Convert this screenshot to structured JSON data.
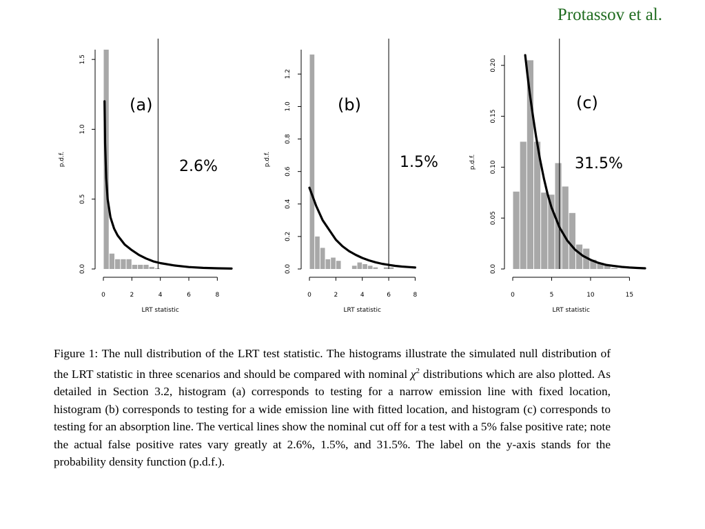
{
  "header": {
    "author": "Protassov et al."
  },
  "caption": {
    "text_before_chi": "Figure 1: The null distribution of the LRT test statistic. The histograms illustrate the simulated null distribution of the LRT statistic in three scenarios and should be compared with nominal ",
    "chi_symbol": "χ",
    "chi_superscript": "2",
    "text_after_chi": " distributions which are also plotted. As detailed in Section 3.2, histogram (a) corresponds to testing for a narrow emission line with fixed location, histogram (b) corresponds to testing for a wide emission line with fitted location, and histogram (c) corresponds to testing for an absorption line. The vertical lines show the nominal cut off for a test with a 5% false positive rate; note the actual false positive rates vary greatly at 2.6%, 1.5%, and 31.5%. The label on the y-axis stands for the probability density function (p.d.f.)."
  },
  "colors": {
    "bar": "#a8a8a8",
    "curve": "#000000",
    "author": "#1f6b1f"
  },
  "chart_data": [
    {
      "type": "bar",
      "panel_label": "(a)",
      "cutoff_label": "2.6%",
      "xlabel": "LRT statistic",
      "ylabel": "p.d.f.",
      "xlim": [
        0,
        9
      ],
      "ylim": [
        0,
        15.7
      ],
      "xticks": [
        0,
        2,
        4,
        6,
        8
      ],
      "yticks": [
        0,
        5,
        10,
        15
      ],
      "ytick_labels": [
        "0.0",
        "0.5",
        "1.0",
        "1.5"
      ],
      "bin_width": 0.4,
      "bin_edges_start": 0,
      "values": [
        15.7,
        1.1,
        0.7,
        0.7,
        0.7,
        0.3,
        0.3,
        0.3,
        0.15,
        0.05
      ],
      "cutoff_x": 3.84,
      "curve": {
        "x": [
          0.08,
          0.12,
          0.2,
          0.3,
          0.5,
          0.75,
          1.0,
          1.5,
          2.0,
          2.5,
          3.0,
          3.5,
          4.0,
          5.0,
          6.0,
          7.0,
          8.0,
          9.0
        ],
        "y": [
          12.0,
          9.0,
          6.5,
          5.0,
          3.7,
          2.9,
          2.4,
          1.75,
          1.35,
          1.0,
          0.75,
          0.55,
          0.42,
          0.25,
          0.14,
          0.08,
          0.05,
          0.03
        ]
      },
      "grid": false
    },
    {
      "type": "bar",
      "panel_label": "(b)",
      "cutoff_label": "1.5%",
      "xlabel": "LRT statistic",
      "ylabel": "p.d.f.",
      "xlim": [
        0,
        8.5
      ],
      "ylim": [
        0,
        1.35
      ],
      "xticks": [
        0,
        2,
        4,
        6,
        8
      ],
      "yticks": [
        0,
        0.2,
        0.4,
        0.6,
        0.8,
        1.0,
        1.2
      ],
      "ytick_labels": [
        "0.0",
        "0.2",
        "0.4",
        "0.6",
        "0.8",
        "1.0",
        "1.2"
      ],
      "bin_width": 0.4,
      "bin_edges_start": 0,
      "values": [
        1.32,
        0.2,
        0.13,
        0.06,
        0.07,
        0.05,
        0.0,
        0.0,
        0.02,
        0.04,
        0.03,
        0.02,
        0.01,
        0.0,
        0.01,
        0.01,
        0.0,
        0.0,
        0.0,
        0.0
      ],
      "cutoff_x": 6.0,
      "curve": {
        "x": [
          0,
          0.5,
          1.0,
          1.5,
          2.0,
          2.5,
          3.0,
          3.5,
          4.0,
          4.5,
          5.0,
          5.5,
          6.0,
          6.5,
          7.0,
          7.5,
          8.0
        ],
        "y": [
          0.5,
          0.39,
          0.3,
          0.24,
          0.18,
          0.14,
          0.11,
          0.087,
          0.068,
          0.053,
          0.041,
          0.032,
          0.025,
          0.019,
          0.015,
          0.012,
          0.009
        ]
      },
      "grid": false
    },
    {
      "type": "bar",
      "panel_label": "(c)",
      "cutoff_label": "31.5%",
      "xlabel": "LRT statistic",
      "ylabel": "p.d.f.",
      "xlim": [
        0,
        17
      ],
      "ylim": [
        0,
        0.21
      ],
      "xticks": [
        0,
        5,
        10,
        15
      ],
      "yticks": [
        0,
        0.05,
        0.1,
        0.15,
        0.2
      ],
      "ytick_labels": [
        "0.0",
        "0.05",
        "0.10",
        "0.15",
        "0.20"
      ],
      "bin_width": 0.9,
      "bin_edges_start": 0,
      "values": [
        0.076,
        0.125,
        0.205,
        0.125,
        0.075,
        0.073,
        0.104,
        0.081,
        0.055,
        0.024,
        0.02,
        0.009,
        0.006,
        0.004,
        0.001,
        0.0,
        0.0
      ],
      "cutoff_x": 6.0,
      "curve": {
        "x": [
          1.6,
          1.9,
          2.2,
          2.6,
          3.0,
          3.5,
          4.0,
          4.5,
          5.0,
          6.0,
          7.0,
          8.0,
          9.0,
          10.0,
          11.0,
          12.0,
          13.0,
          14.0,
          15.0,
          16.0,
          17.0
        ],
        "y": [
          0.21,
          0.19,
          0.172,
          0.15,
          0.13,
          0.108,
          0.089,
          0.073,
          0.06,
          0.041,
          0.028,
          0.019,
          0.013,
          0.009,
          0.006,
          0.004,
          0.003,
          0.002,
          0.0014,
          0.001,
          0.0007
        ]
      },
      "grid": false
    }
  ]
}
